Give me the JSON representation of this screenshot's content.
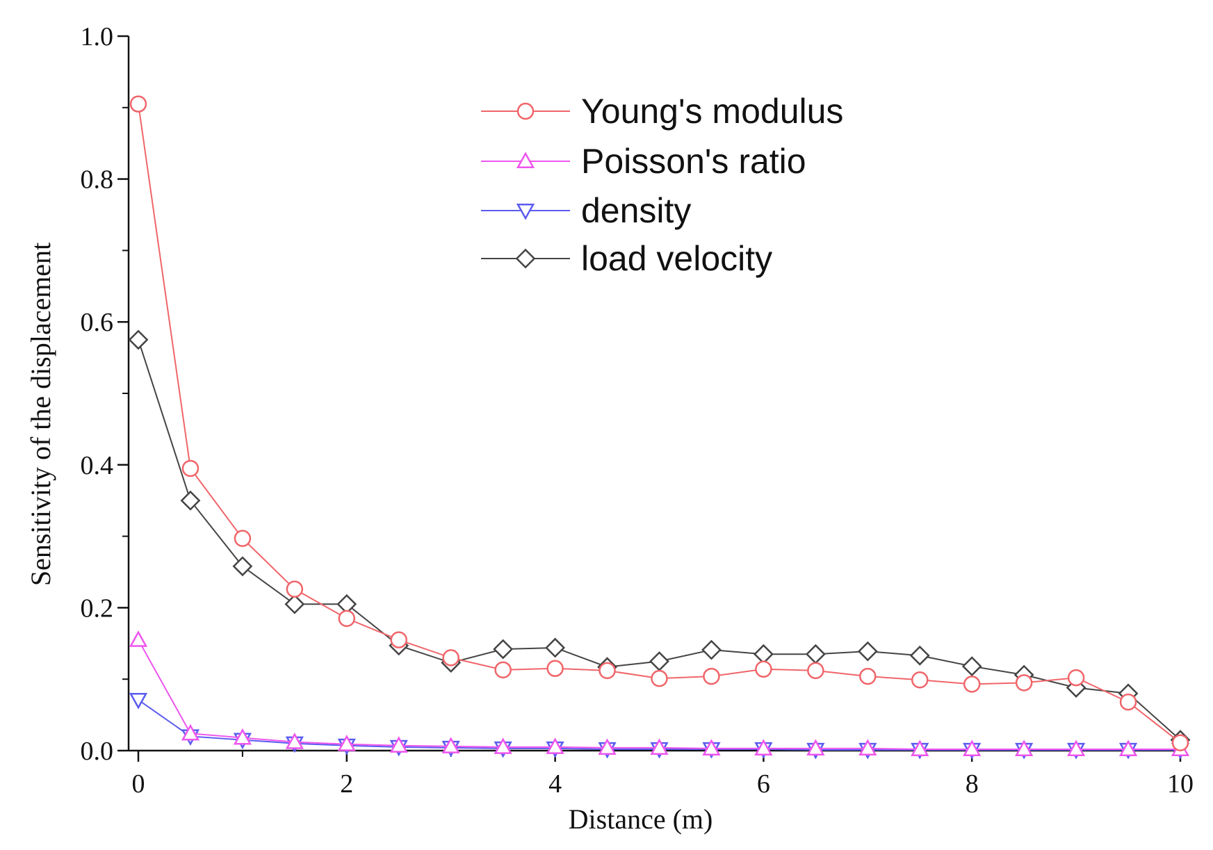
{
  "chart_data": {
    "type": "line",
    "title": "",
    "xlabel": "Distance (m)",
    "ylabel": "Sensitivity of the displacement",
    "xlim": [
      0,
      10
    ],
    "ylim": [
      0,
      1.0
    ],
    "x_ticks": [
      0,
      2,
      4,
      6,
      8,
      10
    ],
    "y_ticks": [
      0.0,
      0.2,
      0.4,
      0.6,
      0.8,
      1.0
    ],
    "x_tick_labels": [
      "0",
      "2",
      "4",
      "6",
      "8",
      "10"
    ],
    "y_tick_labels": [
      "0.0",
      "0.2",
      "0.4",
      "0.6",
      "0.8",
      "1.0"
    ],
    "grid": false,
    "legend_position": "top-right",
    "x": [
      0,
      0.5,
      1,
      1.5,
      2,
      2.5,
      3,
      3.5,
      4,
      4.5,
      5,
      5.5,
      6,
      6.5,
      7,
      7.5,
      8,
      8.5,
      9,
      9.5,
      10
    ],
    "series": [
      {
        "name": "Young's modulus",
        "color": "#f0656a",
        "marker": "circle",
        "values": [
          0.905,
          0.395,
          0.297,
          0.226,
          0.185,
          0.155,
          0.13,
          0.113,
          0.115,
          0.112,
          0.101,
          0.104,
          0.114,
          0.112,
          0.104,
          0.099,
          0.093,
          0.095,
          0.102,
          0.068,
          0.011
        ]
      },
      {
        "name": "Poisson's ratio",
        "color": "#ee55ee",
        "marker": "triangle-up",
        "values": [
          0.155,
          0.024,
          0.018,
          0.012,
          0.009,
          0.007,
          0.006,
          0.005,
          0.005,
          0.004,
          0.004,
          0.003,
          0.003,
          0.003,
          0.003,
          0.002,
          0.002,
          0.002,
          0.002,
          0.002,
          0.002
        ]
      },
      {
        "name": "density",
        "color": "#5b5bf0",
        "marker": "triangle-down",
        "values": [
          0.071,
          0.02,
          0.015,
          0.01,
          0.007,
          0.005,
          0.004,
          0.003,
          0.003,
          0.002,
          0.002,
          0.002,
          0.002,
          0.001,
          0.001,
          0.001,
          0.001,
          0.001,
          0.001,
          0.001,
          0.001
        ]
      },
      {
        "name": "load velocity",
        "color": "#444444",
        "marker": "diamond",
        "values": [
          0.575,
          0.35,
          0.258,
          0.205,
          0.205,
          0.147,
          0.123,
          0.142,
          0.144,
          0.117,
          0.125,
          0.141,
          0.135,
          0.135,
          0.139,
          0.133,
          0.118,
          0.106,
          0.088,
          0.08,
          0.015
        ]
      }
    ]
  }
}
